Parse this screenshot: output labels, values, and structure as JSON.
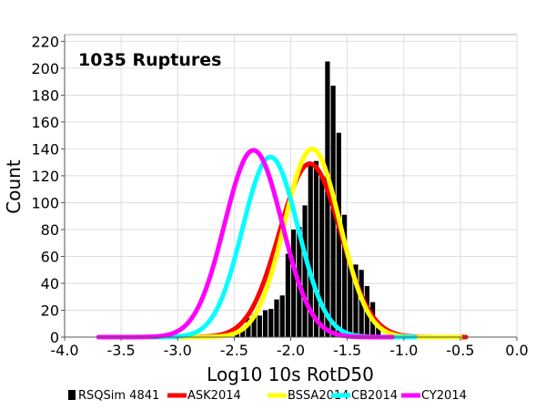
{
  "chart_data": {
    "type": "bar",
    "annotation": "1035 Ruptures",
    "xlabel": "Log10 10s RotD50",
    "ylabel": "Count",
    "xlim": [
      -4.0,
      0.0
    ],
    "ylim": [
      0,
      225
    ],
    "x_ticks": [
      "-4.0",
      "-3.5",
      "-3.0",
      "-2.5",
      "-2.0",
      "-1.5",
      "-1.0",
      "-0.5",
      "0.0"
    ],
    "y_ticks": [
      "0",
      "20",
      "40",
      "60",
      "80",
      "100",
      "120",
      "140",
      "160",
      "180",
      "200",
      "220"
    ],
    "grid": true,
    "legend_position": "bottom",
    "histogram": {
      "name": "RSQSim 4841",
      "color": "#000000",
      "bin_width": 0.05,
      "bins": [
        {
          "x0": -2.5,
          "count": 4
        },
        {
          "x0": -2.45,
          "count": 5
        },
        {
          "x0": -2.4,
          "count": 14
        },
        {
          "x0": -2.35,
          "count": 17
        },
        {
          "x0": -2.3,
          "count": 16
        },
        {
          "x0": -2.25,
          "count": 20
        },
        {
          "x0": -2.2,
          "count": 21
        },
        {
          "x0": -2.15,
          "count": 28
        },
        {
          "x0": -2.1,
          "count": 31
        },
        {
          "x0": -2.05,
          "count": 62
        },
        {
          "x0": -2.0,
          "count": 80
        },
        {
          "x0": -1.95,
          "count": 82
        },
        {
          "x0": -1.9,
          "count": 98
        },
        {
          "x0": -1.85,
          "count": 130
        },
        {
          "x0": -1.8,
          "count": 131
        },
        {
          "x0": -1.75,
          "count": 120
        },
        {
          "x0": -1.7,
          "count": 205
        },
        {
          "x0": -1.65,
          "count": 187
        },
        {
          "x0": -1.6,
          "count": 152
        },
        {
          "x0": -1.55,
          "count": 91
        },
        {
          "x0": -1.5,
          "count": 55
        },
        {
          "x0": -1.45,
          "count": 54
        },
        {
          "x0": -1.4,
          "count": 50
        },
        {
          "x0": -1.35,
          "count": 38
        },
        {
          "x0": -1.3,
          "count": 26
        },
        {
          "x0": -1.25,
          "count": 7
        }
      ]
    },
    "series": [
      {
        "name": "ASK2014",
        "color": "#ff0000",
        "peak_x": -1.83,
        "peak_y": 129,
        "sigma": 0.27,
        "x_range": [
          -3.0,
          -0.45
        ]
      },
      {
        "name": "BSSA2014",
        "color": "#ffff00",
        "peak_x": -1.81,
        "peak_y": 140,
        "sigma": 0.245,
        "x_range": [
          -3.0,
          -0.5
        ]
      },
      {
        "name": "CB2014",
        "color": "#00ffff",
        "peak_x": -2.18,
        "peak_y": 134,
        "sigma": 0.245,
        "x_range": [
          -3.25,
          -0.9
        ]
      },
      {
        "name": "CY2014",
        "color": "#ff00ff",
        "peak_x": -2.33,
        "peak_y": 139,
        "sigma": 0.255,
        "x_range": [
          -3.7,
          -1.1
        ]
      }
    ]
  }
}
